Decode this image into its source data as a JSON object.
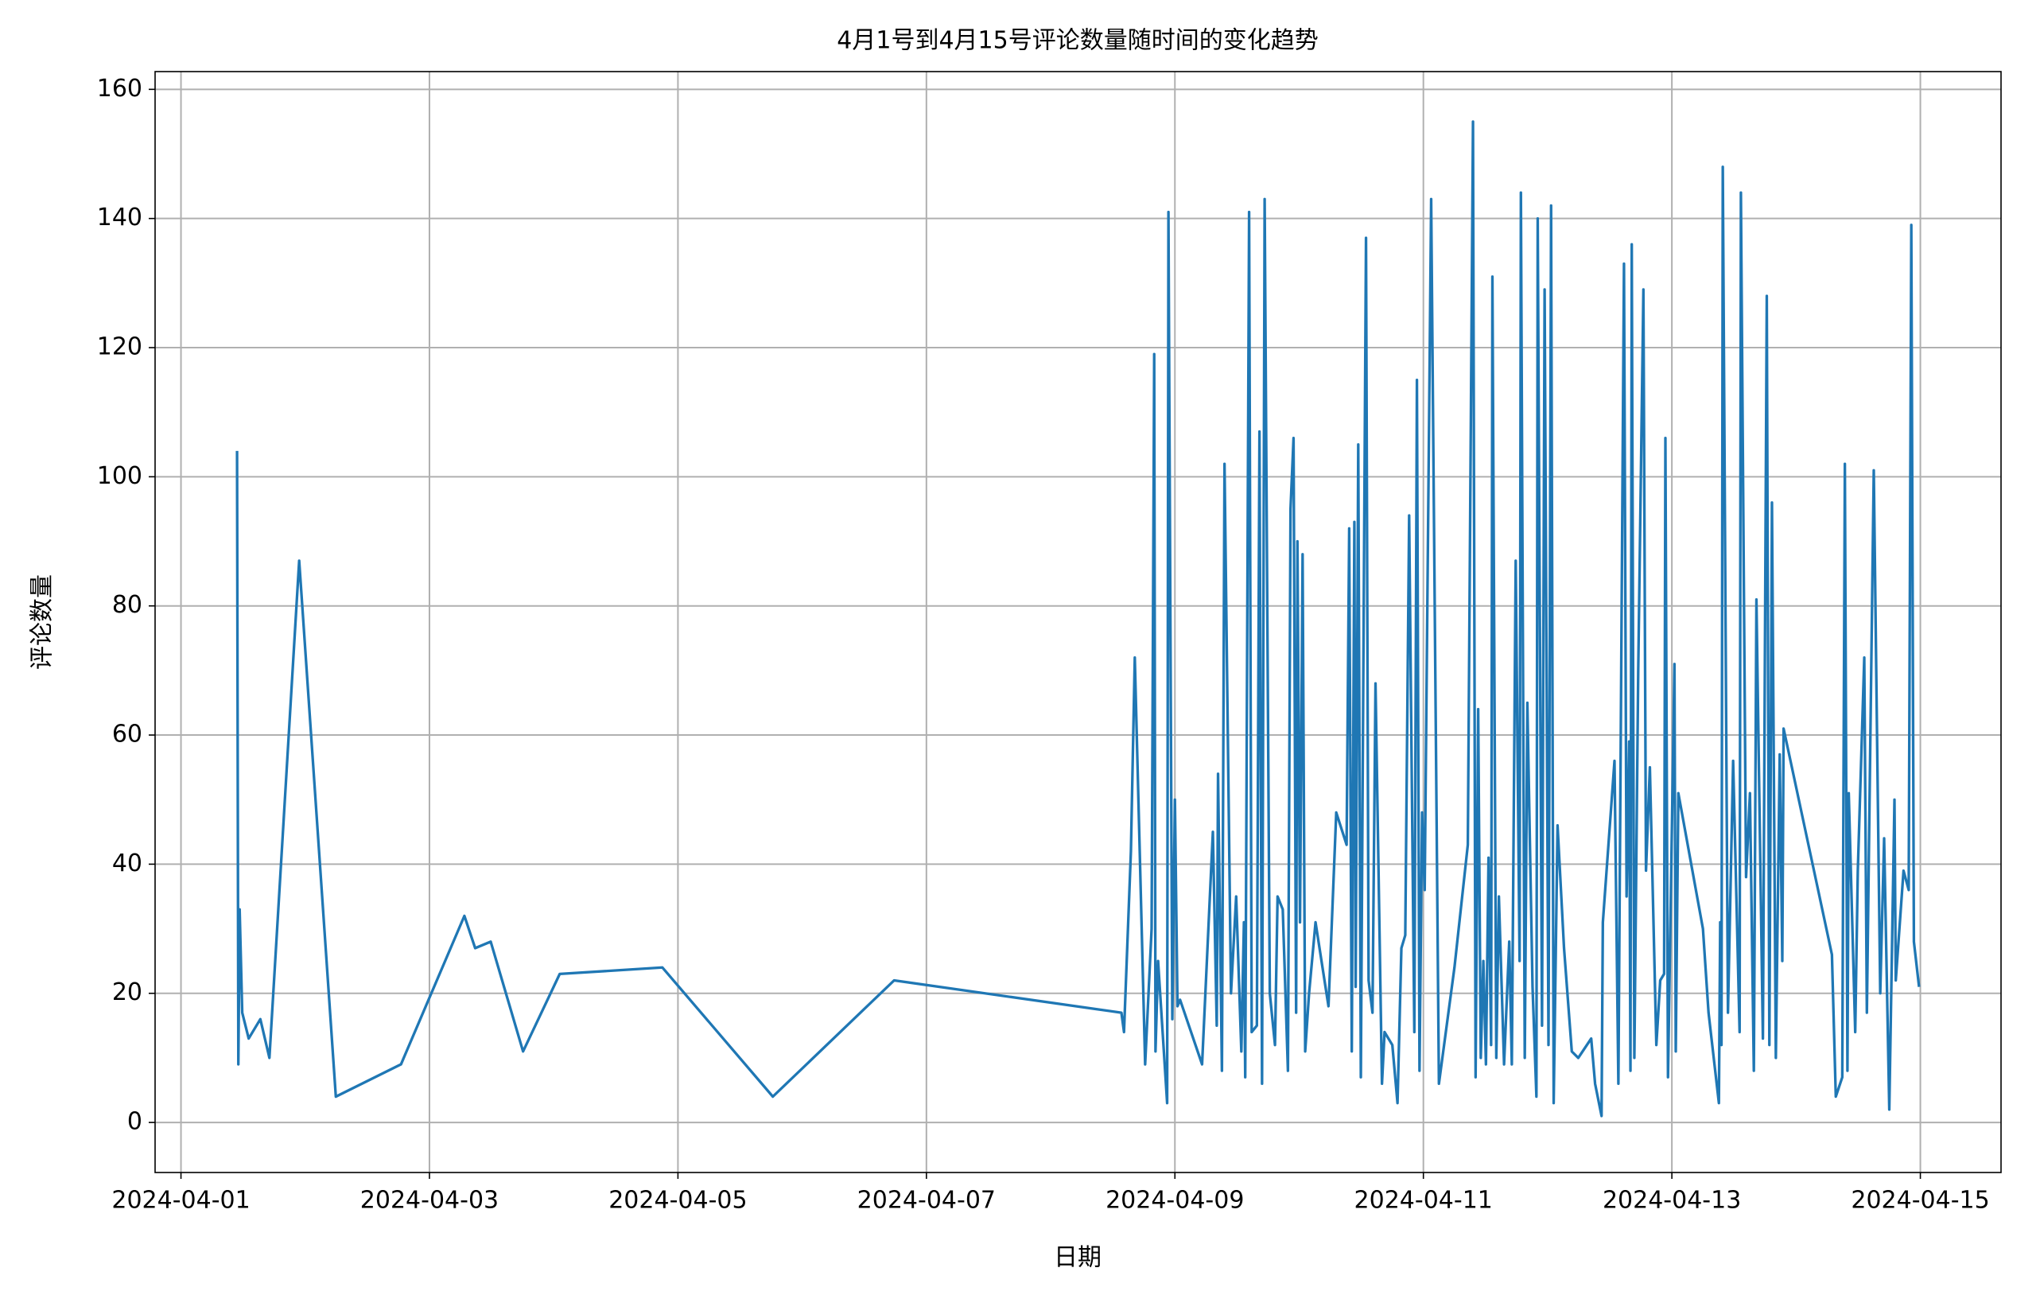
{
  "chart_data": {
    "type": "line",
    "title": "4月1号到4月15号评论数量随时间的变化趋势",
    "x_label": "日期",
    "y_label": "评论数量",
    "color": "#1f77b4",
    "grid": true,
    "x": [
      "2024-04-01 10:50",
      "2024-04-01 11:05",
      "2024-04-01 11:20",
      "2024-04-01 11:50",
      "2024-04-01 13:05",
      "2024-04-01 15:20",
      "2024-04-01 17:05",
      "2024-04-01 22:50",
      "2024-04-02 05:55",
      "2024-04-02 18:30",
      "2024-04-03 06:45",
      "2024-04-03 08:50",
      "2024-04-03 11:50",
      "2024-04-03 18:05",
      "2024-04-04 01:10",
      "2024-04-04 21:00",
      "2024-04-05 18:20",
      "2024-04-06 17:45",
      "2024-04-08 13:40",
      "2024-04-08 14:10",
      "2024-04-08 15:30",
      "2024-04-08 16:15",
      "2024-04-08 18:15",
      "2024-04-08 19:30",
      "2024-04-08 20:00",
      "2024-04-08 20:15",
      "2024-04-08 20:45",
      "2024-04-08 22:30",
      "2024-04-08 22:45",
      "2024-04-08 23:30",
      "2024-04-09 00:00",
      "2024-04-09 00:30",
      "2024-04-09 01:00",
      "2024-04-09 05:15",
      "2024-04-09 07:20",
      "2024-04-09 08:05",
      "2024-04-09 08:20",
      "2024-04-09 09:05",
      "2024-04-09 09:35",
      "2024-04-09 10:50",
      "2024-04-09 11:50",
      "2024-04-09 12:50",
      "2024-04-09 13:20",
      "2024-04-09 13:35",
      "2024-04-09 14:20",
      "2024-04-09 14:50",
      "2024-04-09 15:50",
      "2024-04-09 16:20",
      "2024-04-09 16:50",
      "2024-04-09 17:20",
      "2024-04-09 18:20",
      "2024-04-09 19:20",
      "2024-04-09 19:50",
      "2024-04-09 20:50",
      "2024-04-09 21:50",
      "2024-04-09 22:20",
      "2024-04-09 22:55",
      "2024-04-09 23:25",
      "2024-04-09 23:40",
      "2024-04-10 00:10",
      "2024-04-10 00:40",
      "2024-04-10 01:10",
      "2024-04-10 01:55",
      "2024-04-10 03:10",
      "2024-04-10 05:40",
      "2024-04-10 07:10",
      "2024-04-10 09:10",
      "2024-04-10 09:40",
      "2024-04-10 10:10",
      "2024-04-10 10:40",
      "2024-04-10 10:55",
      "2024-04-10 11:25",
      "2024-04-10 11:55",
      "2024-04-10 12:55",
      "2024-04-10 13:25",
      "2024-04-10 14:10",
      "2024-04-10 14:45",
      "2024-04-10 16:00",
      "2024-04-10 16:30",
      "2024-04-10 18:00",
      "2024-04-10 19:00",
      "2024-04-10 19:45",
      "2024-04-10 20:30",
      "2024-04-10 21:15",
      "2024-04-10 22:15",
      "2024-04-10 22:45",
      "2024-04-10 23:15",
      "2024-04-10 23:45",
      "2024-04-11 00:15",
      "2024-04-11 01:30",
      "2024-04-11 03:00",
      "2024-04-11 06:00",
      "2024-04-11 08:35",
      "2024-04-11 09:35",
      "2024-04-11 10:05",
      "2024-04-11 10:35",
      "2024-04-11 11:05",
      "2024-04-11 11:35",
      "2024-04-11 12:05",
      "2024-04-11 12:35",
      "2024-04-11 13:05",
      "2024-04-11 13:20",
      "2024-04-11 14:05",
      "2024-04-11 14:35",
      "2024-04-11 15:35",
      "2024-04-11 16:35",
      "2024-04-11 17:05",
      "2024-04-11 17:50",
      "2024-04-11 18:35",
      "2024-04-11 18:50",
      "2024-04-11 19:35",
      "2024-04-11 20:05",
      "2024-04-11 21:05",
      "2024-04-11 21:50",
      "2024-04-11 22:05",
      "2024-04-11 22:55",
      "2024-04-11 23:25",
      "2024-04-12 00:10",
      "2024-04-12 00:40",
      "2024-04-12 01:10",
      "2024-04-12 01:55",
      "2024-04-12 03:10",
      "2024-04-12 04:40",
      "2024-04-12 05:55",
      "2024-04-12 08:25",
      "2024-04-12 09:10",
      "2024-04-12 10:25",
      "2024-04-12 10:40",
      "2024-04-12 12:55",
      "2024-04-12 13:40",
      "2024-04-12 14:45",
      "2024-04-12 15:15",
      "2024-04-12 15:45",
      "2024-04-12 16:00",
      "2024-04-12 16:15",
      "2024-04-12 16:45",
      "2024-04-12 17:30",
      "2024-04-12 18:30",
      "2024-04-12 19:00",
      "2024-04-12 19:45",
      "2024-04-12 21:00",
      "2024-04-12 21:45",
      "2024-04-12 22:30",
      "2024-04-12 22:45",
      "2024-04-12 23:15",
      "2024-04-13 00:30",
      "2024-04-13 00:45",
      "2024-04-13 01:15",
      "2024-04-13 06:00",
      "2024-04-13 07:05",
      "2024-04-13 09:05",
      "2024-04-13 09:20",
      "2024-04-13 09:35",
      "2024-04-13 09:50",
      "2024-04-13 10:50",
      "2024-04-13 11:50",
      "2024-04-13 13:05",
      "2024-04-13 13:20",
      "2024-04-13 14:20",
      "2024-04-13 15:05",
      "2024-04-13 15:50",
      "2024-04-13 16:20",
      "2024-04-13 17:35",
      "2024-04-13 18:20",
      "2024-04-13 18:50",
      "2024-04-13 19:20",
      "2024-04-13 20:05",
      "2024-04-13 20:50",
      "2024-04-13 21:20",
      "2024-04-13 21:35",
      "2024-04-14 06:55",
      "2024-04-14 07:40",
      "2024-04-14 08:55",
      "2024-04-14 09:25",
      "2024-04-14 09:55",
      "2024-04-14 10:10",
      "2024-04-14 11:25",
      "2024-04-14 11:55",
      "2024-04-14 13:10",
      "2024-04-14 13:40",
      "2024-04-14 15:00",
      "2024-04-14 16:15",
      "2024-04-14 17:00",
      "2024-04-14 18:00",
      "2024-04-14 19:00",
      "2024-04-14 19:15",
      "2024-04-14 20:45",
      "2024-04-14 21:45",
      "2024-04-14 22:15",
      "2024-04-14 22:45",
      "2024-04-14 23:45"
    ],
    "values": [
      104,
      9,
      33,
      17,
      13,
      16,
      10,
      87,
      4,
      9,
      32,
      27,
      28,
      11,
      23,
      24,
      4,
      22,
      17,
      14,
      42,
      72,
      9,
      30,
      119,
      11,
      25,
      3,
      141,
      16,
      50,
      18,
      19,
      9,
      45,
      15,
      54,
      8,
      102,
      20,
      35,
      11,
      31,
      7,
      141,
      14,
      15,
      107,
      6,
      143,
      20,
      12,
      35,
      33,
      8,
      95,
      106,
      17,
      90,
      31,
      88,
      11,
      20,
      31,
      18,
      48,
      43,
      92,
      11,
      93,
      21,
      105,
      7,
      137,
      22,
      17,
      68,
      6,
      14,
      12,
      3,
      27,
      29,
      94,
      14,
      115,
      8,
      48,
      36,
      143,
      6,
      24,
      43,
      155,
      7,
      64,
      10,
      25,
      9,
      41,
      12,
      131,
      10,
      35,
      9,
      28,
      9,
      87,
      25,
      144,
      10,
      65,
      21,
      4,
      140,
      15,
      129,
      12,
      142,
      3,
      46,
      27,
      11,
      10,
      13,
      6,
      1,
      31,
      56,
      6,
      133,
      35,
      59,
      8,
      136,
      10,
      70,
      129,
      39,
      55,
      12,
      22,
      23,
      106,
      7,
      71,
      11,
      51,
      30,
      17,
      3,
      31,
      12,
      148,
      17,
      56,
      14,
      144,
      38,
      51,
      8,
      81,
      13,
      128,
      12,
      96,
      10,
      57,
      25,
      61,
      26,
      4,
      7,
      102,
      8,
      51,
      14,
      39,
      72,
      17,
      101,
      20,
      44,
      2,
      50,
      22,
      39,
      36,
      139,
      28,
      21
    ],
    "xlim": [
      "2024-03-31 19:00",
      "2024-04-15 15:35"
    ],
    "xticks": [
      "2024-04-01",
      "2024-04-03",
      "2024-04-05",
      "2024-04-07",
      "2024-04-09",
      "2024-04-11",
      "2024-04-13",
      "2024-04-15"
    ],
    "ylim": [
      -7.75,
      162.75
    ],
    "yticks": [
      0,
      20,
      40,
      60,
      80,
      100,
      120,
      140,
      160
    ]
  }
}
